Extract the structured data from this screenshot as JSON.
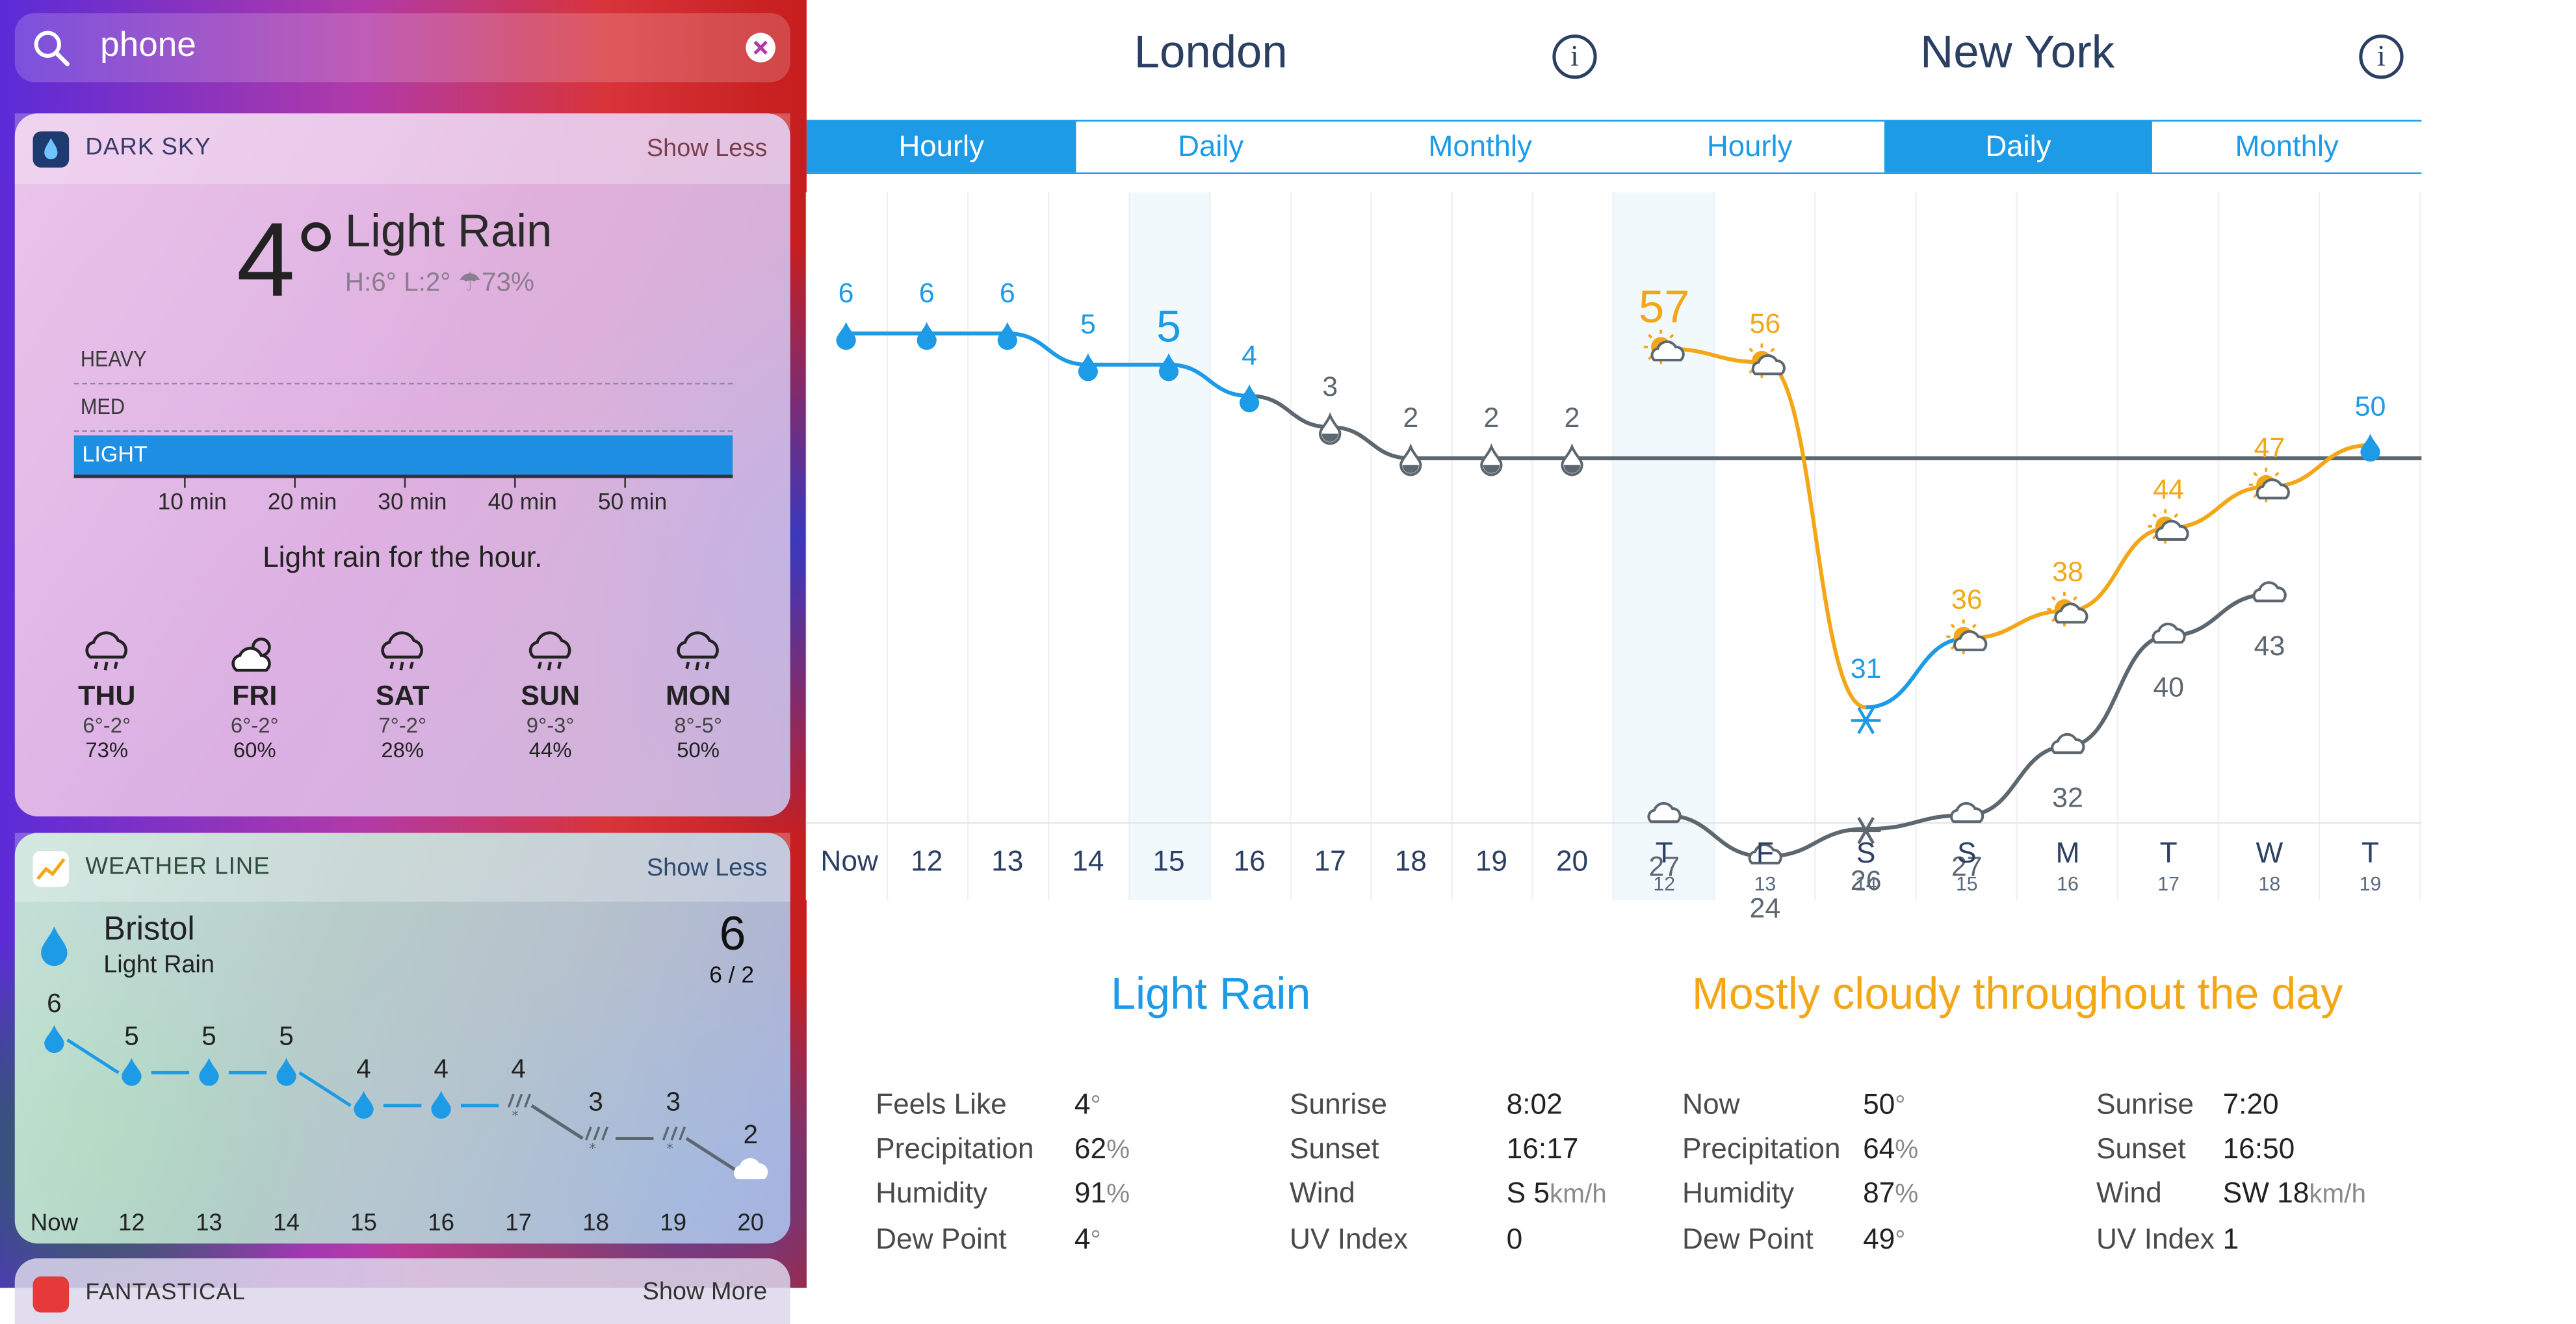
{
  "search": {
    "query": "phone"
  },
  "dark_sky": {
    "app_name": "DARK SKY",
    "show_less": "Show Less",
    "current_temp": "4°",
    "condition": "Light Rain",
    "hi_lo": "H:6° L:2°",
    "precip_chance": "73%",
    "intensity_levels": [
      "HEAVY",
      "MED",
      "LIGHT"
    ],
    "minute_ticks": [
      "10 min",
      "20 min",
      "30 min",
      "40 min",
      "50 min"
    ],
    "rain_intensity": "LIGHT",
    "summary": "Light rain for the hour.",
    "days": [
      {
        "name": "THU",
        "temps": "6°-2°",
        "precip": "73%",
        "icon": "rain-icon"
      },
      {
        "name": "FRI",
        "temps": "6°-2°",
        "precip": "60%",
        "icon": "partly-cloudy-icon"
      },
      {
        "name": "SAT",
        "temps": "7°-2°",
        "precip": "28%",
        "icon": "rain-icon"
      },
      {
        "name": "SUN",
        "temps": "9°-3°",
        "precip": "44%",
        "icon": "rain-icon"
      },
      {
        "name": "MON",
        "temps": "8°-5°",
        "precip": "50%",
        "icon": "rain-icon"
      }
    ]
  },
  "weather_line_widget": {
    "app_name": "WEATHER LINE",
    "show_less": "Show Less",
    "city": "Bristol",
    "condition": "Light Rain",
    "current": "6",
    "hi_lo": "6 / 2",
    "hours": [
      "Now",
      "12",
      "13",
      "14",
      "15",
      "16",
      "17",
      "18",
      "19",
      "20"
    ],
    "temps": [
      6,
      5,
      5,
      5,
      4,
      4,
      4,
      3,
      3,
      2
    ],
    "icons": [
      "drop",
      "drop",
      "drop",
      "drop",
      "drop",
      "drop",
      "sleet",
      "sleet",
      "sleet",
      "cloud"
    ]
  },
  "peek_card": {
    "app_name": "FANTASTICAL",
    "show_more": "Show More"
  },
  "london": {
    "city": "London",
    "tabs": [
      "Hourly",
      "Daily",
      "Monthly"
    ],
    "active_tab": "Hourly",
    "hours": [
      "Now",
      "12",
      "13",
      "14",
      "15",
      "16",
      "17",
      "18",
      "19",
      "20"
    ],
    "selected_hour": "15",
    "temps": [
      6,
      6,
      6,
      5,
      5,
      4,
      3,
      2,
      2,
      2
    ],
    "condition": "Light Rain",
    "details_left": [
      {
        "label": "Feels Like",
        "value": "4",
        "unit": "°"
      },
      {
        "label": "Precipitation",
        "value": "62",
        "unit": "%"
      },
      {
        "label": "Humidity",
        "value": "91",
        "unit": "%"
      },
      {
        "label": "Dew Point",
        "value": "4",
        "unit": "°"
      }
    ],
    "details_right": [
      {
        "label": "Sunrise",
        "value": "8:02",
        "unit": ""
      },
      {
        "label": "Sunset",
        "value": "16:17",
        "unit": ""
      },
      {
        "label": "Wind",
        "value": "S 5",
        "unit": "km/h"
      },
      {
        "label": "UV Index",
        "value": "0",
        "unit": ""
      }
    ]
  },
  "new_york": {
    "city": "New York",
    "tabs": [
      "Hourly",
      "Daily",
      "Monthly"
    ],
    "active_tab": "Daily",
    "days": [
      {
        "d": "T",
        "n": "12"
      },
      {
        "d": "F",
        "n": "13"
      },
      {
        "d": "S",
        "n": "14"
      },
      {
        "d": "S",
        "n": "15"
      },
      {
        "d": "M",
        "n": "16"
      },
      {
        "d": "T",
        "n": "17"
      },
      {
        "d": "W",
        "n": "18"
      },
      {
        "d": "T",
        "n": "19"
      }
    ],
    "highs": [
      57,
      56,
      31,
      36,
      38,
      44,
      47,
      50
    ],
    "lows": [
      27,
      24,
      26,
      27,
      32,
      40,
      43
    ],
    "condition": "Mostly cloudy throughout the day",
    "details_left": [
      {
        "label": "Now",
        "value": "50",
        "unit": "°"
      },
      {
        "label": "Precipitation",
        "value": "64",
        "unit": "%"
      },
      {
        "label": "Humidity",
        "value": "87",
        "unit": "%"
      },
      {
        "label": "Dew Point",
        "value": "49",
        "unit": "°"
      }
    ],
    "details_right": [
      {
        "label": "Sunrise",
        "value": "7:20",
        "unit": ""
      },
      {
        "label": "Sunset",
        "value": "16:50",
        "unit": ""
      },
      {
        "label": "Wind",
        "value": "SW 18",
        "unit": "km/h"
      },
      {
        "label": "UV Index",
        "value": "1",
        "unit": ""
      }
    ]
  },
  "colors": {
    "accent_blue": "#1e9be6",
    "high_orange": "#f3a716",
    "low_gray": "#5d6770",
    "heading_navy": "#2b3f63",
    "rain_bar": "#1e8fe3"
  },
  "chart_data": [
    {
      "type": "line",
      "title": "London",
      "x": [
        "Now",
        "12",
        "13",
        "14",
        "15",
        "16",
        "17",
        "18",
        "19",
        "20"
      ],
      "series": [
        {
          "values": [
            6,
            6,
            6,
            5,
            5,
            4,
            3,
            2,
            2,
            2
          ]
        }
      ]
    },
    {
      "type": "line",
      "title": "New York",
      "categories": [
        "T 12",
        "F 13",
        "S 14",
        "S 15",
        "M 16",
        "T 17",
        "W 18",
        "T 19"
      ],
      "series": [
        {
          "values": [
            57,
            56,
            31,
            36,
            38,
            44,
            47,
            50
          ]
        },
        {
          "values": [
            27,
            24,
            26,
            27,
            32,
            40,
            43,
            null
          ]
        }
      ]
    },
    {
      "type": "line",
      "title": "Bristol",
      "x": [
        "Now",
        "12",
        "13",
        "14",
        "15",
        "16",
        "17",
        "18",
        "19",
        "20"
      ],
      "series": [
        {
          "values": [
            6,
            5,
            5,
            5,
            4,
            4,
            4,
            3,
            3,
            2
          ]
        }
      ]
    }
  ]
}
